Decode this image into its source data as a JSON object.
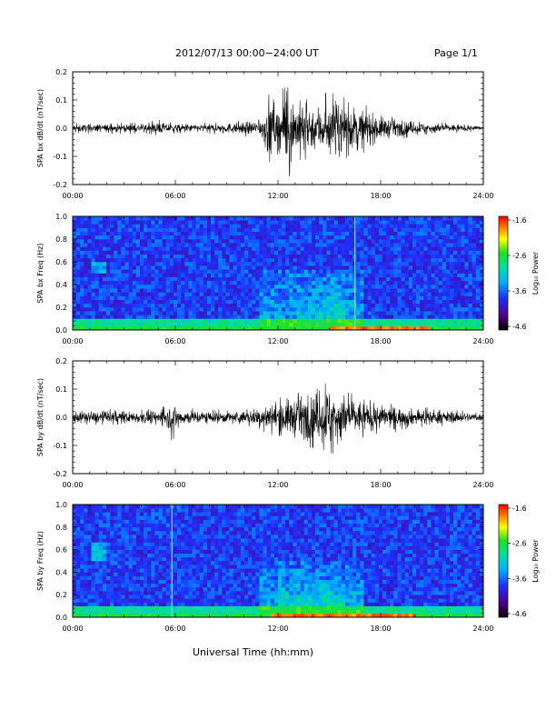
{
  "header": {
    "title": "2012/07/13  00:00−24:00 UT",
    "page": "Page 1/1"
  },
  "x_axis_title": "Universal Time (hh:mm)",
  "chart_data": [
    {
      "type": "line",
      "ylabel": "SPA bx dB/dt (nT/sec)",
      "xlim": [
        "00:00",
        "24:00"
      ],
      "ylim": [
        -0.2,
        0.2
      ],
      "x_ticks": [
        "00:00",
        "06:00",
        "12:00",
        "18:00",
        "24:00"
      ],
      "y_ticks": [
        "-0.2",
        "-0.1",
        "0.0",
        "0.1",
        "0.2"
      ],
      "envelope": {
        "hours": [
          0,
          2,
          4,
          5,
          6,
          8,
          10,
          11,
          11.5,
          12,
          12.5,
          13,
          14,
          15,
          16,
          17,
          18,
          19,
          20,
          22,
          24
        ],
        "amplitude": [
          0.02,
          0.02,
          0.02,
          0.03,
          0.02,
          0.02,
          0.03,
          0.04,
          0.17,
          0.09,
          0.2,
          0.14,
          0.11,
          0.13,
          0.12,
          0.09,
          0.06,
          0.04,
          0.03,
          0.02,
          0.01
        ]
      }
    },
    {
      "type": "heatmap",
      "ylabel": "SPA bx Freq (Hz)",
      "xlim": [
        "00:00",
        "24:00"
      ],
      "ylim": [
        0.0,
        1.0
      ],
      "x_ticks": [
        "00:00",
        "06:00",
        "12:00",
        "18:00",
        "24:00"
      ],
      "y_ticks": [
        "0.0",
        "0.2",
        "0.4",
        "0.6",
        "0.8",
        "1.0"
      ],
      "colorbar": {
        "label": "Log₁₀ Power",
        "range": [
          -4.6,
          -1.6
        ],
        "ticks": [
          "-1.6",
          "-2.6",
          "-3.6",
          "-4.6"
        ]
      },
      "features": {
        "activity_band_hours": [
          11,
          17
        ],
        "activity_peak_hours": [
          14,
          16
        ],
        "activity_max_freq_hz": 0.55,
        "lf_patch_hours": [
          1.2,
          2.0
        ],
        "lf_patch_freq_hz": [
          0.5,
          0.6
        ],
        "spike_hour": 16.5,
        "hot_band_hours": [
          15,
          21
        ]
      }
    },
    {
      "type": "line",
      "ylabel": "SPA by dB/dt (nT/sec)",
      "xlim": [
        "00:00",
        "24:00"
      ],
      "ylim": [
        -0.2,
        0.2
      ],
      "x_ticks": [
        "00:00",
        "06:00",
        "12:00",
        "18:00",
        "24:00"
      ],
      "y_ticks": [
        "-0.2",
        "-0.1",
        "0.0",
        "0.1",
        "0.2"
      ],
      "envelope": {
        "hours": [
          0,
          2,
          4,
          5.5,
          5.8,
          6.2,
          8,
          10,
          11,
          12,
          13,
          14,
          15,
          16,
          17,
          18,
          20,
          22,
          24
        ],
        "amplitude": [
          0.03,
          0.03,
          0.03,
          0.04,
          0.09,
          0.04,
          0.03,
          0.03,
          0.05,
          0.08,
          0.1,
          0.11,
          0.16,
          0.1,
          0.08,
          0.06,
          0.04,
          0.03,
          0.02
        ]
      }
    },
    {
      "type": "heatmap",
      "ylabel": "SPA by Freq (Hz)",
      "xlim": [
        "00:00",
        "24:00"
      ],
      "ylim": [
        0.0,
        1.0
      ],
      "x_ticks": [
        "00:00",
        "06:00",
        "12:00",
        "18:00",
        "24:00"
      ],
      "y_ticks": [
        "0.0",
        "0.2",
        "0.4",
        "0.6",
        "0.8",
        "1.0"
      ],
      "colorbar": {
        "label": "Log₁₀ Power",
        "range": [
          -4.6,
          -1.6
        ],
        "ticks": [
          "-1.6",
          "-2.6",
          "-3.6",
          "-4.6"
        ]
      },
      "features": {
        "activity_band_hours": [
          11,
          17
        ],
        "activity_peak_hours": [
          12,
          16
        ],
        "activity_max_freq_hz": 0.5,
        "lf_patch_hours": [
          1.0,
          2.0
        ],
        "lf_patch_freq_hz": [
          0.5,
          0.65
        ],
        "spike_hour": 5.8,
        "hot_band_hours": [
          11.5,
          20
        ]
      }
    }
  ]
}
